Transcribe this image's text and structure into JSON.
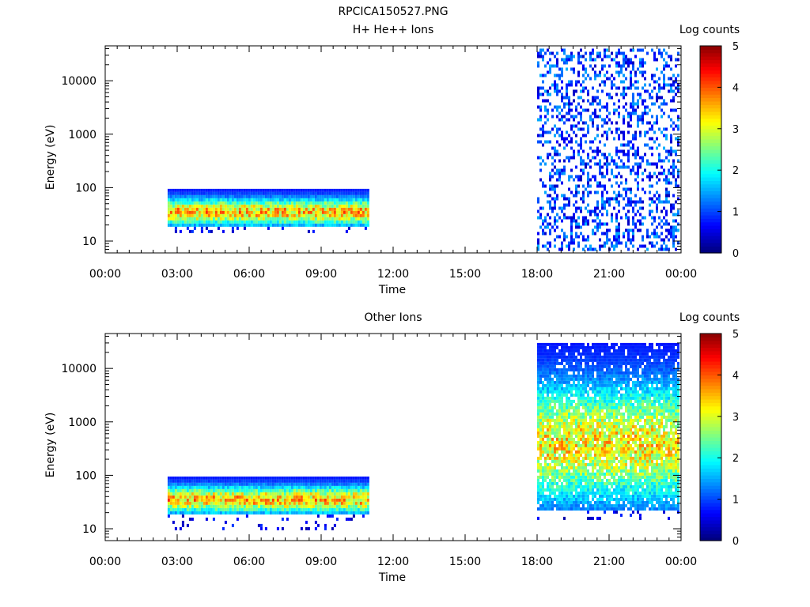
{
  "figure": {
    "title": "RPCICA150527.PNG"
  },
  "chart_data": [
    {
      "type": "heatmap",
      "title": "H+ He++ Ions",
      "xlabel": "Time",
      "ylabel": "Energy (eV)",
      "x_ticks": [
        "00:00",
        "03:00",
        "06:00",
        "09:00",
        "12:00",
        "15:00",
        "18:00",
        "21:00",
        "00:00"
      ],
      "y_ticks": [
        "10",
        "100",
        "1000",
        "10000"
      ],
      "y_scale": "log",
      "ylim": [
        6,
        45000
      ],
      "xlim_hours": [
        0,
        24
      ],
      "colorbar": {
        "label": "Log counts",
        "ticks": [
          "0",
          "1",
          "2",
          "3",
          "4",
          "5"
        ],
        "range": [
          0,
          5
        ]
      },
      "regions": [
        {
          "start_hour": 2.6,
          "end_hour": 11.0,
          "e_min": 15,
          "e_max": 95,
          "dense_floor": 20,
          "peak_log": 3.3,
          "density": 1.0,
          "sparse_below": true
        },
        {
          "start_hour": 18.0,
          "end_hour": 23.9,
          "e_min": 7,
          "e_max": 40000,
          "dense_floor": 7,
          "peak_log": 1.2,
          "density": 0.35,
          "sparse_below": false
        }
      ]
    },
    {
      "type": "heatmap",
      "title": "Other Ions",
      "xlabel": "Time",
      "ylabel": "Energy (eV)",
      "x_ticks": [
        "00:00",
        "03:00",
        "06:00",
        "09:00",
        "12:00",
        "15:00",
        "18:00",
        "21:00",
        "00:00"
      ],
      "y_ticks": [
        "10",
        "100",
        "1000",
        "10000"
      ],
      "y_scale": "log",
      "ylim": [
        6,
        45000
      ],
      "xlim_hours": [
        0,
        24
      ],
      "colorbar": {
        "label": "Log counts",
        "ticks": [
          "0",
          "1",
          "2",
          "3",
          "4",
          "5"
        ],
        "range": [
          0,
          5
        ]
      },
      "regions": [
        {
          "start_hour": 2.6,
          "end_hour": 11.0,
          "e_min": 10,
          "e_max": 95,
          "dense_floor": 20,
          "peak_log": 3.3,
          "density": 1.0,
          "sparse_below": true
        },
        {
          "start_hour": 18.0,
          "end_hour": 23.9,
          "e_min": 15,
          "e_max": 30000,
          "dense_floor": 25,
          "peak_log": 3.0,
          "density": 0.9,
          "sparse_below": true
        }
      ]
    }
  ]
}
